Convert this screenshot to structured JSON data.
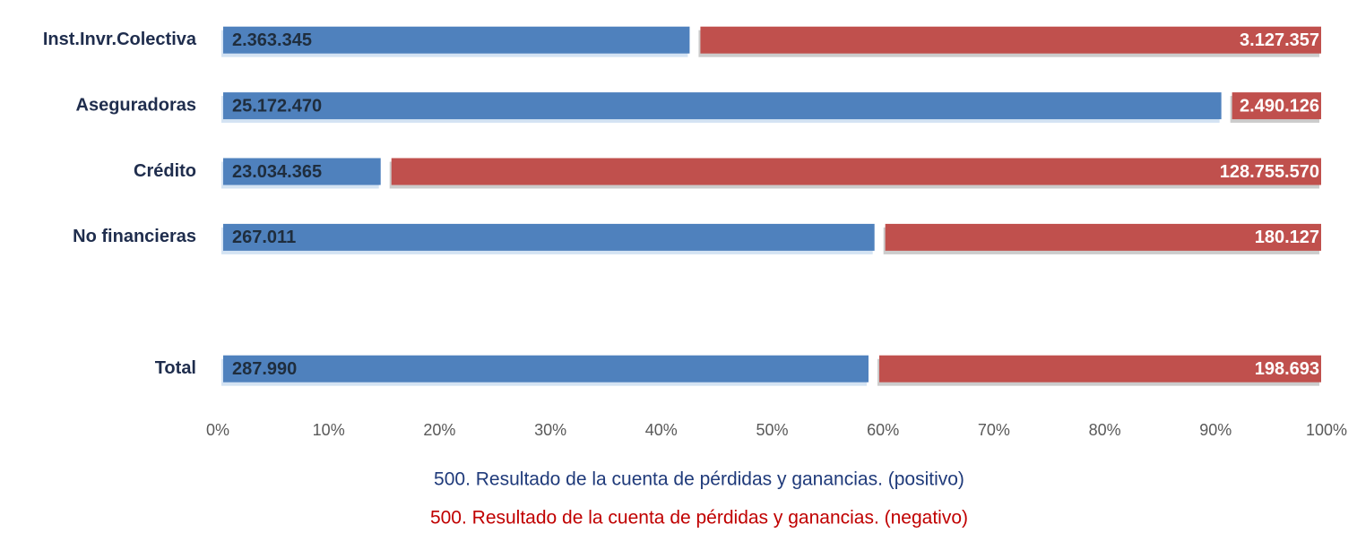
{
  "chart_data": {
    "type": "stacked_bar_100",
    "orientation": "horizontal",
    "categories": [
      "Inst.Invr.Colectiva",
      "Aseguradoras",
      "Crédito",
      "No financieras",
      null,
      "Total"
    ],
    "series": [
      {
        "name": "500. Resultado de la cuenta de pérdidas y ganancias. (positivo)",
        "color": "#4f81bd",
        "values": [
          2363345,
          25172470,
          23034365,
          267011,
          null,
          287990
        ],
        "value_labels": [
          "2.363.345",
          "25.172.470",
          "23.034.365",
          "267.011",
          null,
          "287.990"
        ]
      },
      {
        "name": "500. Resultado de la cuenta de pérdidas y ganancias. (negativo)",
        "color": "#c0504d",
        "values": [
          3127357,
          2490126,
          128755570,
          180127,
          null,
          198693
        ],
        "value_labels": [
          "3.127.357",
          "2.490.126",
          "128.755.570",
          "180.127",
          null,
          "198.693"
        ]
      }
    ],
    "xlim": [
      0,
      100
    ],
    "xticks": [
      {
        "value": 0,
        "label": "0%"
      },
      {
        "value": 10,
        "label": "10%"
      },
      {
        "value": 20,
        "label": "20%"
      },
      {
        "value": 30,
        "label": "30%"
      },
      {
        "value": 40,
        "label": "40%"
      },
      {
        "value": 50,
        "label": "50%"
      },
      {
        "value": 60,
        "label": "60%"
      },
      {
        "value": 70,
        "label": "70%"
      },
      {
        "value": 80,
        "label": "80%"
      },
      {
        "value": 90,
        "label": "90%"
      },
      {
        "value": 100,
        "label": "100%"
      }
    ],
    "legend": "bottom"
  }
}
